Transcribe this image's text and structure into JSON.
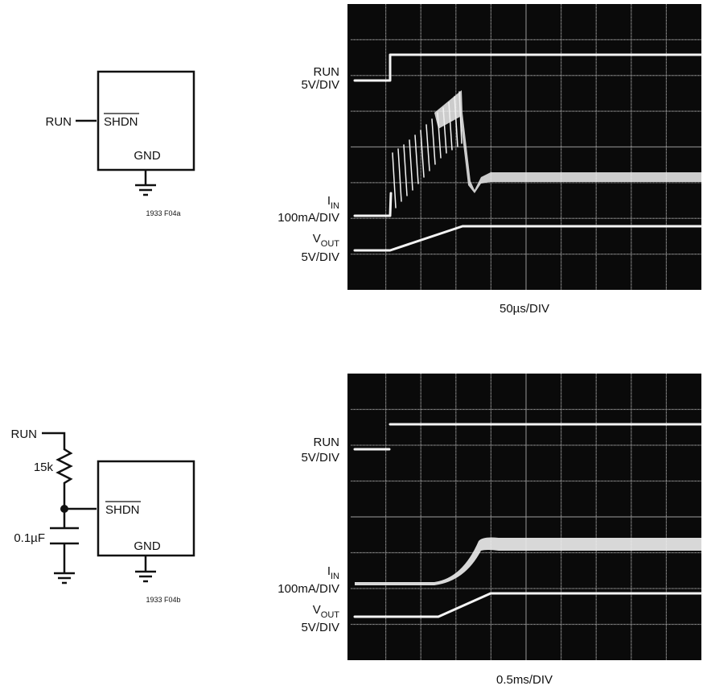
{
  "figure_a": {
    "schematic": {
      "run": "RUN",
      "shdn": "SHDN",
      "gnd": "GND",
      "code": "1933 F04a"
    },
    "scope": {
      "channels": [
        {
          "name": "RUN",
          "scale": "5V/DIV"
        },
        {
          "name": {
            "main": "I",
            "sub": "IN"
          },
          "scale": "100mA/DIV"
        },
        {
          "name": {
            "main": "V",
            "sub": "OUT"
          },
          "scale": "5V/DIV"
        }
      ],
      "timebase": "50µs/DIV"
    }
  },
  "figure_b": {
    "schematic": {
      "run": "RUN",
      "resistor": "15k",
      "capacitor": "0.1µF",
      "shdn": "SHDN",
      "gnd": "GND",
      "code": "1933 F04b"
    },
    "scope": {
      "channels": [
        {
          "name": "RUN",
          "scale": "5V/DIV"
        },
        {
          "name": {
            "main": "I",
            "sub": "IN"
          },
          "scale": "100mA/DIV"
        },
        {
          "name": {
            "main": "V",
            "sub": "OUT"
          },
          "scale": "5V/DIV"
        }
      ],
      "timebase": "0.5ms/DIV"
    }
  }
}
